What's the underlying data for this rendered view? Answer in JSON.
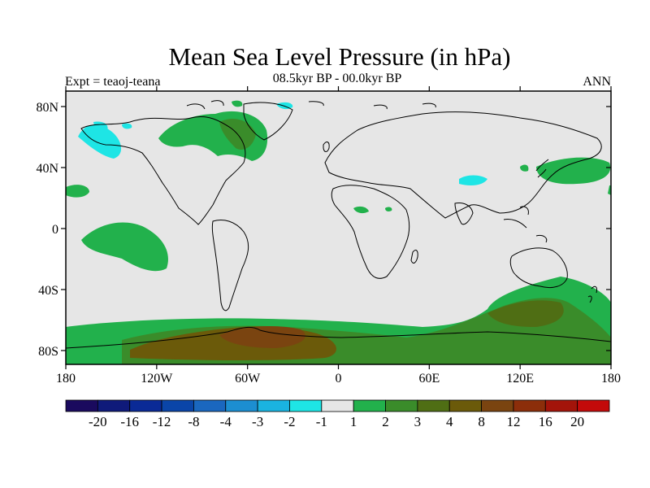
{
  "title": "Mean Sea Level Pressure (in hPa)",
  "subtitle_left": "Expt = teaoj-teana",
  "subtitle_center": "08.5kyr BP - 00.0kyr BP",
  "subtitle_right": "ANN",
  "lat_ticks": [
    "80N",
    "40N",
    "0",
    "40S",
    "80S"
  ],
  "lon_ticks": [
    "180",
    "120W",
    "60W",
    "0",
    "60E",
    "120E",
    "180"
  ],
  "colorbar": {
    "colors": [
      "#1a0a5e",
      "#0f1a7a",
      "#0a2a96",
      "#0a45a8",
      "#1a67bf",
      "#1c8ed1",
      "#1ab3e0",
      "#1ee5e5",
      "#e6e6e6",
      "#22b14c",
      "#3a8c2a",
      "#4f6e14",
      "#6b5a0a",
      "#7a4410",
      "#8c2e0a",
      "#a3140a",
      "#c30a0a"
    ],
    "labels": [
      "-20",
      "-16",
      "-12",
      "-8",
      "-4",
      "-3",
      "-2",
      "-1",
      "1",
      "2",
      "3",
      "4",
      "8",
      "12",
      "16",
      "20"
    ]
  },
  "map": {
    "background": "#e6e6e6",
    "land_outline": "#000000"
  }
}
